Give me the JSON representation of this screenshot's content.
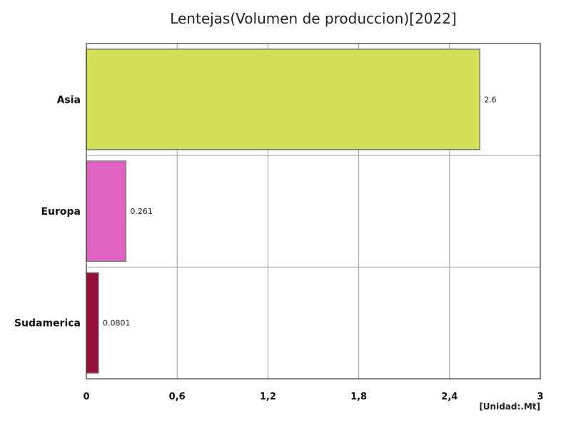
{
  "chart_data": {
    "type": "bar",
    "orientation": "horizontal",
    "title": "Lentejas(Volumen de produccion)[2022]",
    "unit": "[Unidad:.Mt]",
    "categories": [
      "Asia",
      "Europa",
      "Sudamerica"
    ],
    "values": [
      2.6,
      0.261,
      0.0801
    ],
    "value_labels": [
      "2.6",
      "0.261",
      "0.0801"
    ],
    "colors": [
      "#d6e054",
      "#e063c2",
      "#960d35"
    ],
    "xlim": [
      0,
      3
    ],
    "xticks": [
      0,
      0.6,
      1.2,
      1.8,
      2.4,
      3
    ],
    "xtick_labels": [
      "0",
      "0,6",
      "1,2",
      "1,8",
      "2,4",
      "3"
    ],
    "grid": true
  }
}
